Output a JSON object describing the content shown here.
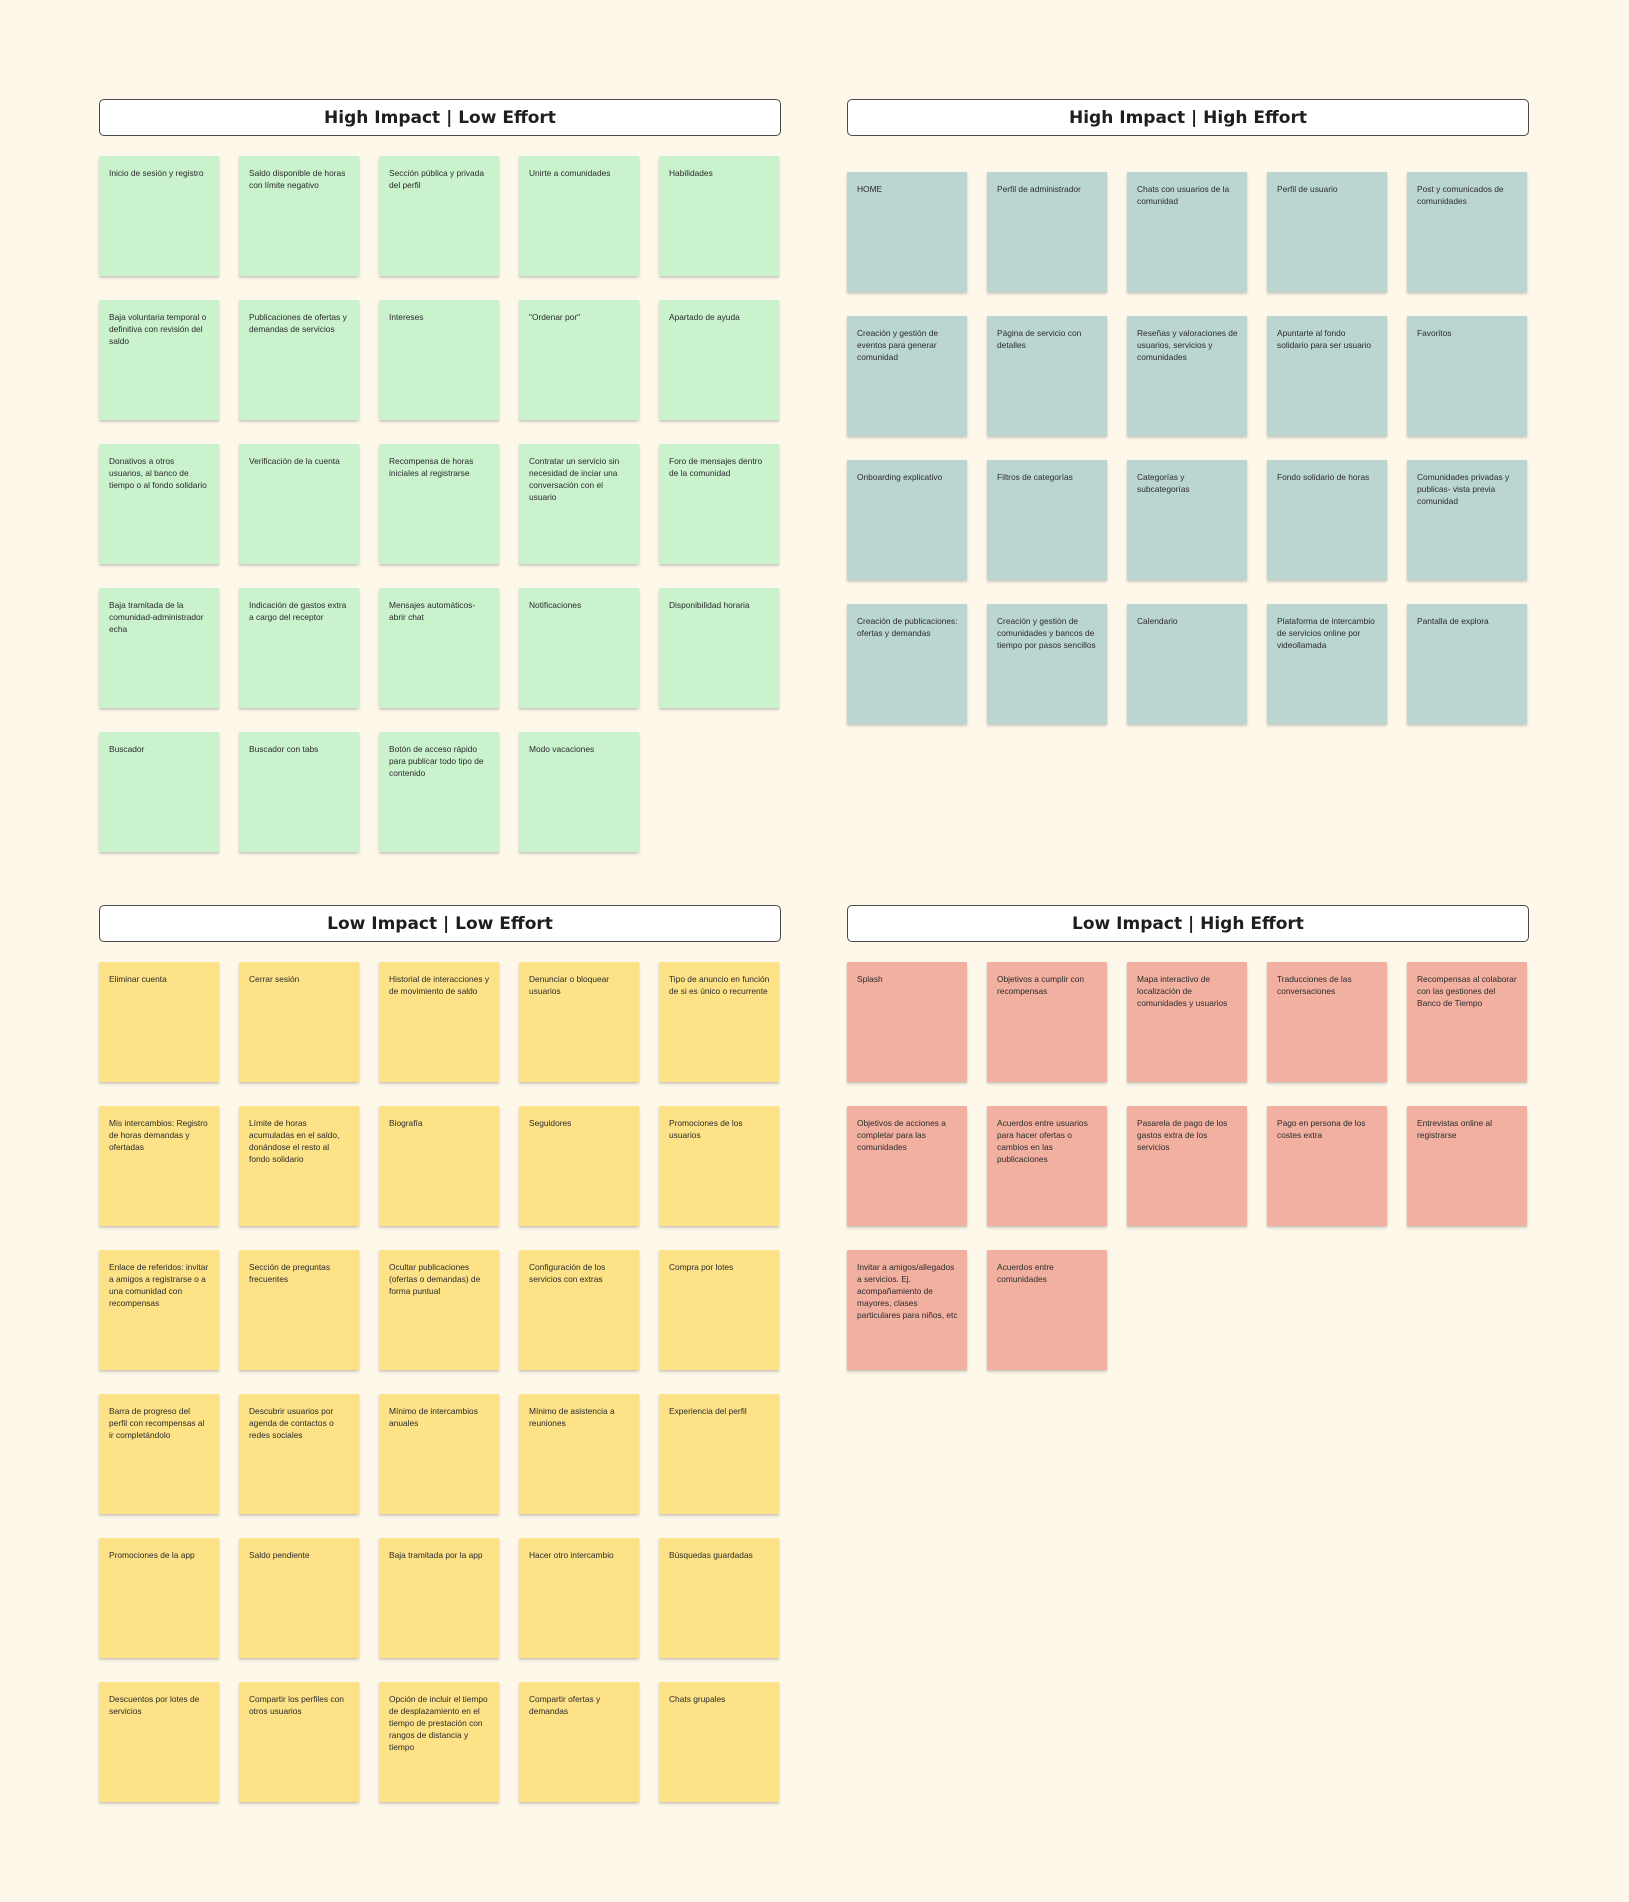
{
  "quadrants": [
    {
      "id": "q-hl",
      "title": "High Impact | Low Effort",
      "color": "#c9f2cd",
      "notes": [
        "Inicio de sesión y registro",
        "Saldo disponible de horas con límite negativo",
        "Sección pública y privada del perfil",
        "Unirte a comunidades",
        "Habilidades",
        "Baja voluntaria temporal o definitiva con revisión del saldo",
        "Publicaciones de ofertas y demandas de servicios",
        "Intereses",
        "\"Ordenar por\"",
        "Apartado de ayuda",
        "Donativos a otros usuarios, al banco de tiempo o al fondo solidario",
        "Verificación de la cuenta",
        "Recompensa de horas iniciales al registrarse",
        "Contratar un servicio sin necesidad de inciar una conversación con el usuario",
        "Foro de mensajes dentro de la comunidad",
        "Baja tramitada de la comunidad-administrador echa",
        "Indicación de gastos extra a cargo del receptor",
        "Mensajes automáticos-abrir chat",
        "Notificaciones",
        "Disponibilidad horaria",
        "Buscador",
        "Buscador con tabs",
        "Botón de acceso rápido para publicar todo tipo de contenido",
        "Modo vacaciones"
      ]
    },
    {
      "id": "q-hh",
      "title": "High Impact | High Effort",
      "color": "#bbd6d1",
      "notes": [
        "HOME",
        "Perfil de administrador",
        "Chats con usuarios de la comunidad",
        "Perfil de usuario",
        "Post y comunicados de comunidades",
        "Creación y gestión de eventos para generar comunidad",
        "Página de servicio con detalles",
        "Reseñas y valoraciones de usuarios, servicios y comunidades",
        "Apuntarte al fondo solidario para ser usuario",
        "Favoritos",
        "Onboarding explicativo",
        "Filtros de categorías",
        "Categorías y subcategorías",
        "Fondo solidario de horas",
        "Comunidades privadas y publicas- vista previa comunidad",
        "Creación de publicaciones: ofertas y demandas",
        "Creación y gestión de comunidades y bancos de tiempo por pasos sencillos",
        "Calendario",
        "Plataforma de intercambio de servicios online por videollamada",
        "Pantalla de explora"
      ]
    },
    {
      "id": "q-ll",
      "title": "Low Impact | Low Effort",
      "color": "#fde287",
      "notes": [
        "Eliminar cuenta",
        "Cerrar sesión",
        "Historial de interacciones y de movimiento de saldo",
        "Denunciar o bloquear usuarios",
        "Tipo de anuncio en función de si es único o recurrente",
        "Mis intercambios: Registro de horas demandas y ofertadas",
        "Límite de horas acumuladas en el saldo, donándose el resto al fondo solidario",
        "Biografía",
        "Seguidores",
        "Promociones de los usuarios",
        "Enlace de referidos: invitar a amigos a registrarse o a una comunidad con recompensas",
        "Sección de preguntas frecuentes",
        "Ocultar publicaciones (ofertas o demandas) de forma puntual",
        "Configuración de los servicios con extras",
        "Compra por lotes",
        "Barra de progreso del perfil con recompensas al ir completándolo",
        "Descubrir usuarios por agenda de contactos o redes sociales",
        "Mínimo de intercambios anuales",
        "Mínimo de asistencia a reuniones",
        "Experiencia del perfil",
        "Promociones de la app",
        "Saldo pendiente",
        "Baja tramitada por la app",
        "Hacer otro intercambio",
        "Búsquedas guardadas",
        "Descuentos por lotes de servicios",
        "Compartir los perfiles con otros usuarios",
        "Opción de incluir el tiempo de desplazamiento en el tiempo de prestación con rangos de distancia y tiempo",
        "Compartir ofertas y demandas",
        "Chats grupales"
      ]
    },
    {
      "id": "q-lh",
      "title": "Low Impact | High Effort",
      "color": "#f2b0a1",
      "notes": [
        "Splash",
        "Objetivos a cumplir con recompensas",
        "Mapa interactivo de localización de comunidades y usuarios",
        "Traducciones de las conversaciones",
        "Recompensas al colaborar con las gestiones del Banco de Tiempo",
        "Objetivos de acciones a completar para las comunidades",
        "Acuerdos entre usuarios para hacer ofertas o cambios en las publicaciones",
        "Pasarela de pago de los gastos extra de los servicios",
        "Pago en persona de los costes extra",
        "Entrevistas online al registrarse",
        "Invitar a amigos/allegados a servicios. Ej. acompañamiento de mayores, clases particulares para niños, etc",
        "Acuerdos entre comunidades"
      ]
    }
  ]
}
